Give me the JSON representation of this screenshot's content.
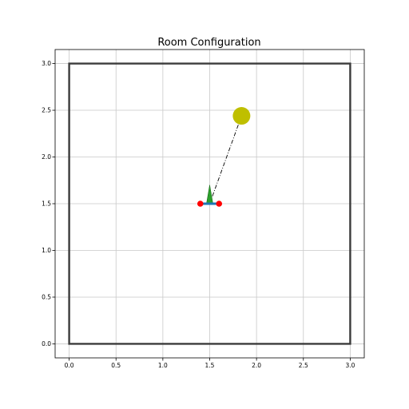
{
  "chart_data": {
    "type": "scatter",
    "title": "Room Configuration",
    "xlabel": "",
    "ylabel": "",
    "xlim": [
      -0.15,
      3.15
    ],
    "ylim": [
      -0.15,
      3.15
    ],
    "grid": true,
    "xticks": [
      0.0,
      0.5,
      1.0,
      1.5,
      2.0,
      2.5,
      3.0
    ],
    "yticks": [
      0.0,
      0.5,
      1.0,
      1.5,
      2.0,
      2.5,
      3.0
    ],
    "xtick_labels": [
      "0.0",
      "0.5",
      "1.0",
      "1.5",
      "2.0",
      "2.5",
      "3.0"
    ],
    "ytick_labels": [
      "0.0",
      "0.5",
      "1.0",
      "1.5",
      "2.0",
      "2.5",
      "3.0"
    ],
    "room": {
      "corners": [
        [
          0,
          0
        ],
        [
          3,
          0
        ],
        [
          3,
          3
        ],
        [
          0,
          3
        ]
      ],
      "color": "#3b3b3b"
    },
    "source": {
      "x": 1.84,
      "y": 2.44,
      "color": "#bfbf00"
    },
    "receiver_axis": {
      "start": [
        1.4,
        1.5
      ],
      "end": [
        1.6,
        1.5
      ],
      "color": "#1f77b4"
    },
    "receiver_mics": [
      {
        "x": 1.4,
        "y": 1.5
      },
      {
        "x": 1.6,
        "y": 1.5
      }
    ],
    "mic_color": "#ff0000",
    "orientation_arrow": {
      "base": [
        1.5,
        1.5
      ],
      "tip": [
        1.5,
        1.7
      ],
      "color": "#2ca02c"
    },
    "direction_line": {
      "from": [
        1.5,
        1.5
      ],
      "to": [
        1.84,
        2.44
      ],
      "color": "#000000"
    }
  }
}
